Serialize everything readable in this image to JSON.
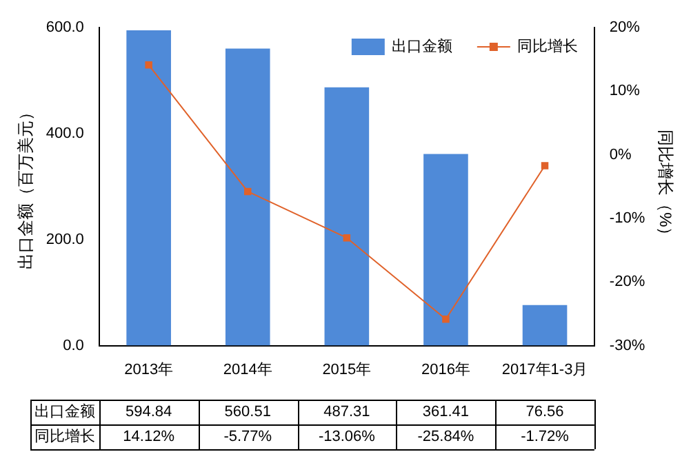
{
  "chart_data": {
    "type": "bar",
    "categories": [
      "2013年",
      "2014年",
      "2015年",
      "2016年",
      "2017年1-3月"
    ],
    "ylabel": "出口金额（百万美元）",
    "y2label": "同比增长（%）",
    "ylim": [
      0,
      600
    ],
    "yticks": [
      {
        "value": 0,
        "label": "0.0"
      },
      {
        "value": 200,
        "label": "200.0"
      },
      {
        "value": 400,
        "label": "400.0"
      },
      {
        "value": 600,
        "label": "600.0"
      }
    ],
    "y2lim": [
      -30,
      20
    ],
    "y2ticks": [
      {
        "value": -30,
        "label": "-30%"
      },
      {
        "value": -20,
        "label": "-20%"
      },
      {
        "value": -10,
        "label": "-10%"
      },
      {
        "value": 0,
        "label": "0%"
      },
      {
        "value": 10,
        "label": "10%"
      },
      {
        "value": 20,
        "label": "20%"
      }
    ],
    "grid": false,
    "legend": "top right",
    "marker": "square",
    "series": [
      {
        "name": "出口金额",
        "color": "#4f8ad8",
        "values": [
          594.84,
          560.51,
          487.31,
          361.41,
          76.56
        ],
        "value_labels": [
          "594.84",
          "560.51",
          "487.31",
          "361.41",
          "76.56"
        ]
      },
      {
        "name": "同比增长",
        "type": "line",
        "axis": "y2",
        "color": "#e0622a",
        "values": [
          14.12,
          -5.77,
          -13.06,
          -25.84,
          -1.72
        ],
        "value_labels": [
          "14.12%",
          "-5.77%",
          "-13.06%",
          "-25.84%",
          "-1.72%"
        ]
      }
    ]
  }
}
